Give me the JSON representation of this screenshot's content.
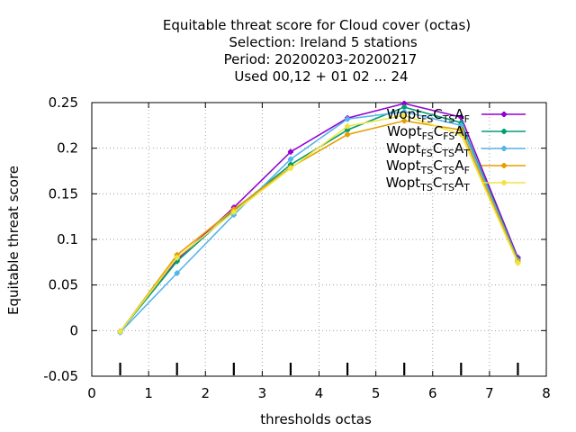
{
  "chart_data": {
    "type": "line",
    "title_lines": [
      "Equitable threat score  for Cloud cover (octas)",
      "Selection: Ireland      5 stations",
      "Period: 20200203-20200217",
      "Used  00,12  + 01 02 ... 24"
    ],
    "xlabel": "thresholds octas",
    "ylabel": "Equitable threat score",
    "xlim": [
      0,
      8
    ],
    "ylim": [
      -0.05,
      0.25
    ],
    "xticks": [
      0,
      1,
      2,
      3,
      4,
      5,
      6,
      7,
      8
    ],
    "xtick_labels": [
      "0",
      "1",
      "2",
      "3",
      "4",
      "5",
      "6",
      "7",
      "8"
    ],
    "yticks": [
      -0.05,
      0,
      0.05,
      0.1,
      0.15,
      0.2,
      0.25
    ],
    "ytick_labels": [
      "-0.05",
      "0",
      "0.05",
      "0.1",
      "0.15",
      "0.2",
      "0.25"
    ],
    "grid": true,
    "legend_position": "top-right",
    "x": [
      0.5,
      1.5,
      2.5,
      3.5,
      4.5,
      5.5,
      6.5,
      7.5
    ],
    "series": [
      {
        "name": "Wopt_FS C_TS A_F",
        "legend_parts": [
          [
            "Wopt",
            ""
          ],
          [
            "FS",
            "sub"
          ],
          [
            "C",
            ""
          ],
          [
            "TS",
            "sub"
          ],
          [
            "A",
            ""
          ],
          [
            "F",
            "sub"
          ]
        ],
        "color": "#9400d3",
        "values": [
          -0.001,
          0.078,
          0.135,
          0.196,
          0.233,
          0.249,
          0.234,
          0.08
        ]
      },
      {
        "name": "Wopt_FS C_FS A_F",
        "legend_parts": [
          [
            "Wopt",
            ""
          ],
          [
            "FS",
            "sub"
          ],
          [
            "C",
            ""
          ],
          [
            "FS",
            "sub"
          ],
          [
            "A",
            ""
          ],
          [
            "F",
            "sub"
          ]
        ],
        "color": "#009e73",
        "values": [
          -0.001,
          0.076,
          0.132,
          0.182,
          0.22,
          0.245,
          0.228,
          0.078
        ]
      },
      {
        "name": "Wopt_FS C_TS A_T",
        "legend_parts": [
          [
            "Wopt",
            ""
          ],
          [
            "FS",
            "sub"
          ],
          [
            "C",
            ""
          ],
          [
            "TS",
            "sub"
          ],
          [
            "A",
            ""
          ],
          [
            "T",
            "sub"
          ]
        ],
        "color": "#56b4e9",
        "values": [
          -0.002,
          0.063,
          0.127,
          0.188,
          0.232,
          0.24,
          0.225,
          0.077
        ]
      },
      {
        "name": "Wopt_TS C_TS A_F",
        "legend_parts": [
          [
            "Wopt",
            ""
          ],
          [
            "TS",
            "sub"
          ],
          [
            "C",
            ""
          ],
          [
            "TS",
            "sub"
          ],
          [
            "A",
            ""
          ],
          [
            "F",
            "sub"
          ]
        ],
        "color": "#e69f00",
        "values": [
          -0.001,
          0.083,
          0.133,
          0.179,
          0.215,
          0.23,
          0.22,
          0.076
        ]
      },
      {
        "name": "Wopt_TS C_TS A_T",
        "legend_parts": [
          [
            "Wopt",
            ""
          ],
          [
            "TS",
            "sub"
          ],
          [
            "C",
            ""
          ],
          [
            "TS",
            "sub"
          ],
          [
            "A",
            ""
          ],
          [
            "T",
            "sub"
          ]
        ],
        "color": "#f0e442",
        "values": [
          -0.001,
          0.08,
          0.13,
          0.178,
          0.224,
          0.236,
          0.215,
          0.074
        ]
      }
    ],
    "bottom_tick_marks_x": [
      0.5,
      1.5,
      2.5,
      3.5,
      4.5,
      5.5,
      6.5,
      7.5
    ]
  }
}
